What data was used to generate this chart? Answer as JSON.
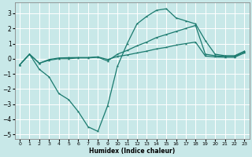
{
  "xlabel": "Humidex (Indice chaleur)",
  "bg_color": "#c8e8e8",
  "grid_color": "#ffffff",
  "line_color": "#1a7a6e",
  "xlim": [
    -0.5,
    23.5
  ],
  "ylim": [
    -5.3,
    3.7
  ],
  "yticks": [
    -5,
    -4,
    -3,
    -2,
    -1,
    0,
    1,
    2,
    3
  ],
  "xticks": [
    0,
    1,
    2,
    3,
    4,
    5,
    6,
    7,
    8,
    9,
    10,
    11,
    12,
    13,
    14,
    15,
    16,
    17,
    18,
    19,
    20,
    21,
    22,
    23
  ],
  "line1_x": [
    0,
    1,
    2,
    3,
    4,
    5,
    6,
    7,
    8,
    9,
    10,
    11,
    12,
    13,
    14,
    15,
    16,
    17,
    18,
    19,
    20,
    21,
    22,
    23
  ],
  "line1_y": [
    -0.4,
    0.3,
    -0.7,
    -1.2,
    -2.3,
    -2.7,
    -3.5,
    -4.5,
    -4.8,
    -3.1,
    -0.5,
    1.0,
    2.3,
    2.8,
    3.2,
    3.3,
    2.7,
    2.5,
    2.3,
    1.2,
    0.3,
    0.2,
    0.2,
    0.5
  ],
  "line2_x": [
    0,
    1,
    2,
    3,
    4,
    5,
    6,
    7,
    8,
    9,
    10,
    11,
    12,
    13,
    14,
    15,
    16,
    17,
    18,
    19,
    20,
    21,
    22,
    23
  ],
  "line2_y": [
    -0.4,
    0.3,
    -0.3,
    -0.1,
    0.0,
    0.0,
    0.05,
    0.05,
    0.1,
    -0.15,
    0.3,
    0.55,
    0.85,
    1.1,
    1.4,
    1.6,
    1.8,
    2.0,
    2.2,
    0.3,
    0.2,
    0.15,
    0.15,
    0.45
  ],
  "line3_x": [
    0,
    1,
    2,
    3,
    4,
    5,
    6,
    7,
    8,
    9,
    10,
    11,
    12,
    13,
    14,
    15,
    16,
    17,
    18,
    19,
    20,
    21,
    22,
    23
  ],
  "line3_y": [
    -0.4,
    0.3,
    -0.3,
    -0.05,
    0.05,
    0.07,
    0.08,
    0.08,
    0.12,
    -0.05,
    0.15,
    0.25,
    0.38,
    0.5,
    0.65,
    0.75,
    0.9,
    1.0,
    1.1,
    0.18,
    0.12,
    0.1,
    0.1,
    0.38
  ]
}
